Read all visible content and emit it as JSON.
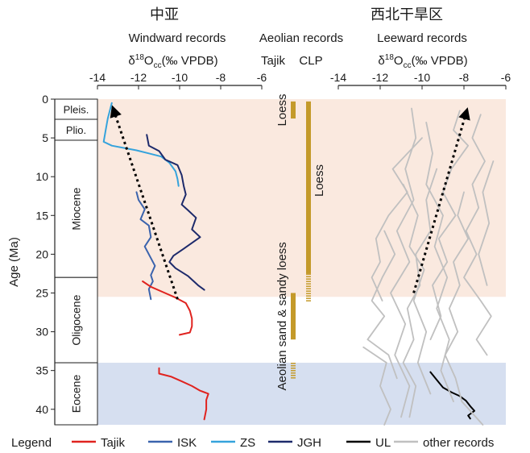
{
  "header": {
    "left_region": "中亚",
    "right_region": "西北干旱区",
    "left_title": "Windward records",
    "middle_title": "Aeolian records",
    "right_title": "Leeward records",
    "left_unit": {
      "prefix": "δ",
      "sup": "18",
      "main": "O",
      "sub": "cc",
      "suffix": "(‰ VPDB)"
    },
    "right_unit": {
      "prefix": "δ",
      "sup": "18",
      "main": "O",
      "sub": "cc",
      "suffix": "(‰ VPDB)"
    },
    "middle_cols": [
      "Tajik",
      "CLP"
    ]
  },
  "colors": {
    "tajik": "#e0231f",
    "isk": "#3a63ad",
    "zs": "#35a3dc",
    "jgh": "#1d2a6b",
    "ul": "#000000",
    "other": "#c0c0c0",
    "loess": "#c49a2a",
    "pink_band": "#fae9df",
    "blue_band": "#d6dff0"
  },
  "chart_data": {
    "type": "line",
    "ylabel": "Age (Ma)",
    "ylim": [
      0,
      42
    ],
    "y_ticks": [
      0,
      5,
      10,
      15,
      20,
      25,
      30,
      35,
      40
    ],
    "xlim_left": [
      -14,
      -6
    ],
    "xlim_right": [
      -14,
      -6
    ],
    "x_ticks": [
      -14,
      -12,
      -10,
      -8,
      -6
    ],
    "epochs": [
      {
        "name": "Pleis.",
        "from": 0,
        "to": 2.6
      },
      {
        "name": "Plio.",
        "from": 2.6,
        "to": 5.3
      },
      {
        "name": "Miocene",
        "from": 5.3,
        "to": 23
      },
      {
        "name": "Oligocene",
        "from": 23,
        "to": 34
      },
      {
        "name": "Eocene",
        "from": 34,
        "to": 42
      }
    ],
    "bands": [
      {
        "from": 0,
        "to": 25.5,
        "color": "pink"
      },
      {
        "from": 34,
        "to": 42,
        "color": "blue"
      }
    ],
    "left_series": [
      {
        "name": "ZS",
        "color_key": "zs",
        "points": [
          [
            -13.3,
            0.5
          ],
          [
            -13.5,
            2.5
          ],
          [
            -13.6,
            4.0
          ],
          [
            -13.7,
            5.5
          ],
          [
            -13.3,
            6.0
          ],
          [
            -12.7,
            6.3
          ],
          [
            -12.1,
            6.6
          ],
          [
            -11.5,
            7.0
          ],
          [
            -10.9,
            7.4
          ],
          [
            -10.5,
            8.2
          ],
          [
            -10.2,
            9.3
          ],
          [
            -10.1,
            10.3
          ],
          [
            -10.05,
            11.2
          ]
        ]
      },
      {
        "name": "ISK",
        "color_key": "isk",
        "points": [
          [
            -12.1,
            12.0
          ],
          [
            -12.0,
            13.0
          ],
          [
            -11.7,
            14.2
          ],
          [
            -11.9,
            15.5
          ],
          [
            -11.5,
            16.3
          ],
          [
            -11.4,
            17.8
          ],
          [
            -11.7,
            19.0
          ],
          [
            -11.4,
            20.5
          ],
          [
            -11.2,
            21.5
          ],
          [
            -11.4,
            22.7
          ],
          [
            -11.3,
            23.5
          ],
          [
            -11.5,
            24.5
          ],
          [
            -11.4,
            25.8
          ]
        ]
      },
      {
        "name": "JGH",
        "color_key": "jgh",
        "points": [
          [
            -11.6,
            4.6
          ],
          [
            -11.5,
            6.0
          ],
          [
            -11.0,
            6.7
          ],
          [
            -10.7,
            7.8
          ],
          [
            -10.1,
            8.5
          ],
          [
            -9.9,
            9.8
          ],
          [
            -9.8,
            11.2
          ],
          [
            -9.7,
            12.3
          ],
          [
            -9.9,
            13.6
          ],
          [
            -9.6,
            14.3
          ],
          [
            -9.2,
            15.3
          ],
          [
            -9.4,
            16.8
          ],
          [
            -9.0,
            17.8
          ],
          [
            -9.8,
            19.3
          ],
          [
            -10.3,
            20.2
          ],
          [
            -10.5,
            21.0
          ],
          [
            -10.2,
            21.8
          ],
          [
            -9.6,
            22.8
          ],
          [
            -9.1,
            24.0
          ],
          [
            -8.8,
            24.6
          ]
        ]
      },
      {
        "name": "Tajik",
        "color_key": "tajik",
        "points": [
          [
            -11.8,
            23.5
          ],
          [
            -11.4,
            24.2
          ],
          [
            -10.8,
            24.9
          ],
          [
            -10.2,
            25.6
          ],
          [
            -9.7,
            26.3
          ],
          [
            -9.5,
            27.3
          ],
          [
            -9.4,
            28.3
          ],
          [
            -9.4,
            29.3
          ],
          [
            -9.5,
            30.1
          ],
          [
            -10.0,
            30.4
          ]
        ]
      },
      {
        "name": "Tajik",
        "color_key": "tajik",
        "points": [
          [
            -11.0,
            34.7
          ],
          [
            -11.0,
            35.4
          ],
          [
            -10.4,
            35.8
          ],
          [
            -9.9,
            36.4
          ],
          [
            -9.4,
            37.0
          ],
          [
            -9.0,
            37.6
          ],
          [
            -8.6,
            38.0
          ],
          [
            -8.7,
            38.8
          ],
          [
            -8.7,
            40.0
          ],
          [
            -8.8,
            41.3
          ]
        ]
      }
    ],
    "left_trend": {
      "from": [
        -10.1,
        25.8
      ],
      "to": [
        -13.2,
        1.5
      ]
    },
    "right_series": [
      {
        "name": "UL",
        "color_key": "ul",
        "points": [
          [
            -9.6,
            35.2
          ],
          [
            -9.3,
            36.2
          ],
          [
            -9.0,
            37.2
          ],
          [
            -8.6,
            37.8
          ],
          [
            -8.2,
            38.3
          ],
          [
            -7.9,
            38.9
          ],
          [
            -7.7,
            39.6
          ],
          [
            -7.5,
            40.2
          ],
          [
            -7.8,
            40.8
          ],
          [
            -7.7,
            41.2
          ]
        ]
      },
      {
        "name": "other records",
        "color_key": "other",
        "points": [
          [
            -10.5,
            1.2
          ],
          [
            -10.3,
            5
          ],
          [
            -10.8,
            9
          ],
          [
            -10.4,
            13
          ],
          [
            -11.2,
            17
          ],
          [
            -10.6,
            21
          ],
          [
            -11.5,
            25
          ],
          [
            -10.8,
            29
          ],
          [
            -11.3,
            33
          ],
          [
            -10.6,
            37
          ],
          [
            -11.0,
            41
          ]
        ]
      },
      {
        "name": "other records",
        "color_key": "other",
        "points": [
          [
            -9.8,
            3
          ],
          [
            -9.5,
            7
          ],
          [
            -9.8,
            11
          ],
          [
            -9.0,
            15
          ],
          [
            -9.4,
            19
          ],
          [
            -8.8,
            23
          ],
          [
            -9.3,
            27
          ],
          [
            -8.7,
            31
          ],
          [
            -9.1,
            35
          ],
          [
            -8.5,
            39
          ]
        ]
      },
      {
        "name": "other records",
        "color_key": "other",
        "points": [
          [
            -8.2,
            1.5
          ],
          [
            -8.5,
            4
          ],
          [
            -7.8,
            6
          ],
          [
            -8.6,
            9
          ],
          [
            -9.0,
            12
          ],
          [
            -8.4,
            15
          ],
          [
            -9.2,
            18
          ],
          [
            -8.8,
            21
          ],
          [
            -9.5,
            24
          ],
          [
            -9.1,
            28
          ],
          [
            -9.6,
            31
          ]
        ]
      },
      {
        "name": "other records",
        "color_key": "other",
        "points": [
          [
            -7.2,
            2
          ],
          [
            -7.6,
            5
          ],
          [
            -7.0,
            8
          ],
          [
            -7.6,
            11
          ],
          [
            -7.3,
            14
          ],
          [
            -7.9,
            17
          ],
          [
            -7.4,
            20
          ],
          [
            -8.0,
            23
          ],
          [
            -7.2,
            26
          ],
          [
            -6.7,
            28
          ],
          [
            -7.4,
            31
          ],
          [
            -6.9,
            33
          ]
        ]
      },
      {
        "name": "other records",
        "color_key": "other",
        "points": [
          [
            -11.8,
            17
          ],
          [
            -11.3,
            20
          ],
          [
            -11.9,
            23
          ],
          [
            -12.4,
            26
          ],
          [
            -11.8,
            28
          ],
          [
            -12.6,
            31
          ],
          [
            -11.6,
            33
          ],
          [
            -11.2,
            36
          ]
        ]
      },
      {
        "name": "other records",
        "color_key": "other",
        "points": [
          [
            -10.0,
            5
          ],
          [
            -11.4,
            9
          ],
          [
            -10.7,
            12
          ],
          [
            -11.6,
            15
          ],
          [
            -12.2,
            18
          ],
          [
            -12.0,
            21
          ],
          [
            -12.4,
            23
          ],
          [
            -11.9,
            26
          ]
        ]
      },
      {
        "name": "other records",
        "color_key": "other",
        "points": [
          [
            -9.3,
            9
          ],
          [
            -9.8,
            13
          ],
          [
            -9.6,
            17
          ],
          [
            -10.3,
            20
          ],
          [
            -10.1,
            24
          ],
          [
            -10.7,
            27
          ],
          [
            -10.4,
            31
          ],
          [
            -10.9,
            34
          ],
          [
            -10.3,
            37
          ],
          [
            -10.6,
            41
          ]
        ]
      },
      {
        "name": "other records",
        "color_key": "other",
        "points": [
          [
            -8.0,
            12
          ],
          [
            -8.3,
            15
          ],
          [
            -7.8,
            18
          ],
          [
            -8.5,
            21
          ],
          [
            -8.2,
            24
          ],
          [
            -8.7,
            27
          ],
          [
            -8.3,
            30
          ],
          [
            -8.9,
            33
          ],
          [
            -8.4,
            36
          ],
          [
            -8.1,
            39
          ],
          [
            -7.1,
            42
          ]
        ]
      },
      {
        "name": "other records",
        "color_key": "other",
        "points": [
          [
            -12.8,
            32
          ],
          [
            -11.7,
            34
          ],
          [
            -12.0,
            37
          ],
          [
            -11.5,
            40
          ],
          [
            -11.8,
            42
          ]
        ]
      },
      {
        "name": "other records",
        "color_key": "other",
        "points": [
          [
            -6.6,
            8
          ],
          [
            -7.1,
            12
          ],
          [
            -6.8,
            16
          ],
          [
            -7.3,
            20
          ],
          [
            -6.9,
            24
          ]
        ]
      },
      {
        "name": "other records",
        "color_key": "other",
        "points": [
          [
            -10.9,
            11
          ],
          [
            -10.2,
            15
          ],
          [
            -10.6,
            19
          ],
          [
            -9.9,
            22
          ],
          [
            -10.4,
            26
          ],
          [
            -9.8,
            30
          ],
          [
            -10.2,
            34
          ],
          [
            -9.6,
            38
          ]
        ]
      }
    ],
    "right_trend": {
      "from": [
        -10.4,
        25.0
      ],
      "to": [
        -7.9,
        1.8
      ]
    },
    "aeolian": {
      "tajik_col": [
        {
          "from": 0.3,
          "to": 2.5,
          "style": "solid",
          "label": "Loess"
        },
        {
          "from": 25.0,
          "to": 31.0,
          "style": "solid",
          "label": "Aeolian sand & sandy loess"
        },
        {
          "from": 34.0,
          "to": 36.0,
          "style": "dashed",
          "label": ""
        }
      ],
      "clp_col": [
        {
          "from": 0.3,
          "to": 22.5,
          "style": "solid",
          "label": "Loess"
        },
        {
          "from": 22.5,
          "to": 26.0,
          "style": "dashed",
          "label": ""
        }
      ]
    },
    "legend": {
      "title": "Legend",
      "items": [
        {
          "name": "Tajik",
          "color_key": "tajik"
        },
        {
          "name": "ISK",
          "color_key": "isk"
        },
        {
          "name": "ZS",
          "color_key": "zs"
        },
        {
          "name": "JGH",
          "color_key": "jgh"
        },
        {
          "name": "UL",
          "color_key": "ul"
        },
        {
          "name": "other records",
          "color_key": "other"
        }
      ]
    }
  }
}
